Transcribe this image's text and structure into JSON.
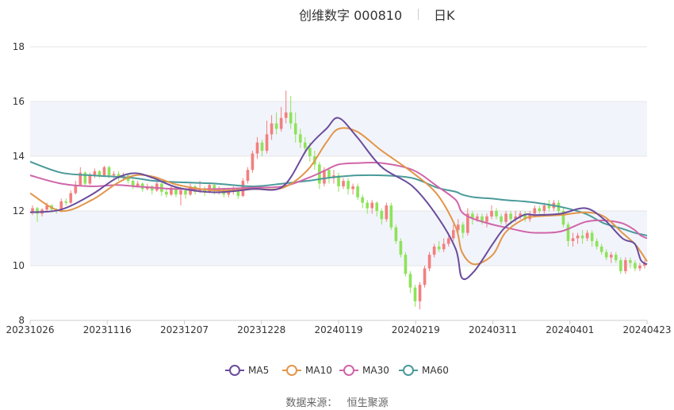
{
  "header": {
    "title": "创维数字 000810",
    "subtitle": "日K"
  },
  "footer": {
    "source_label": "数据来源：",
    "source_name": "恒生聚源"
  },
  "colors": {
    "up": "#f37f7f",
    "down": "#8de35a",
    "ma5": "#6a4c9c",
    "ma10": "#e2964a",
    "ma30": "#d065a9",
    "ma60": "#4a9a9a",
    "band": "#f2f4fb",
    "axis_text": "#333333"
  },
  "chart_data": {
    "type": "candlestick",
    "ylim": [
      8,
      18
    ],
    "yticks": [
      8,
      10,
      12,
      14,
      16,
      18
    ],
    "shaded_bands": [
      [
        10,
        12
      ],
      [
        14,
        16
      ]
    ],
    "xtick_labels": [
      "20231026",
      "20231116",
      "20231207",
      "20231228",
      "20240119",
      "20240219",
      "20240311",
      "20240401",
      "20240423"
    ],
    "legend": [
      {
        "name": "MA5",
        "color_key": "ma5"
      },
      {
        "name": "MA10",
        "color_key": "ma10"
      },
      {
        "name": "MA30",
        "color_key": "ma30"
      },
      {
        "name": "MA60",
        "color_key": "ma60"
      }
    ],
    "candles": [
      [
        11.95,
        12.1,
        12.2,
        11.85
      ],
      [
        12.1,
        11.9,
        12.15,
        11.6
      ],
      [
        11.9,
        12.05,
        12.1,
        11.8
      ],
      [
        12.05,
        12.2,
        12.3,
        12.0
      ],
      [
        12.2,
        12.05,
        12.25,
        11.95
      ],
      [
        12.05,
        12.0,
        12.1,
        11.9
      ],
      [
        12.0,
        12.35,
        12.45,
        11.95
      ],
      [
        12.35,
        12.3,
        12.45,
        12.2
      ],
      [
        12.3,
        12.65,
        12.75,
        12.25
      ],
      [
        12.65,
        12.95,
        13.1,
        12.6
      ],
      [
        12.95,
        13.4,
        13.6,
        12.9
      ],
      [
        13.4,
        13.0,
        13.45,
        12.9
      ],
      [
        13.0,
        13.3,
        13.4,
        12.95
      ],
      [
        13.3,
        13.45,
        13.55,
        13.2
      ],
      [
        13.45,
        13.3,
        13.5,
        13.2
      ],
      [
        13.3,
        13.6,
        13.65,
        13.25
      ],
      [
        13.6,
        13.3,
        13.65,
        13.2
      ],
      [
        13.3,
        13.35,
        13.45,
        13.2
      ],
      [
        13.35,
        13.2,
        13.45,
        13.1
      ],
      [
        13.2,
        13.3,
        13.4,
        13.1
      ],
      [
        13.3,
        13.1,
        13.35,
        13.0
      ],
      [
        13.1,
        12.9,
        13.15,
        12.8
      ],
      [
        12.9,
        13.0,
        13.1,
        12.85
      ],
      [
        13.0,
        12.8,
        13.05,
        12.7
      ],
      [
        12.8,
        12.9,
        13.0,
        12.75
      ],
      [
        12.9,
        12.75,
        12.95,
        12.6
      ],
      [
        12.75,
        13.0,
        13.1,
        12.7
      ],
      [
        13.0,
        12.7,
        13.05,
        12.55
      ],
      [
        12.7,
        12.6,
        12.8,
        12.5
      ],
      [
        12.6,
        12.85,
        12.95,
        12.55
      ],
      [
        12.85,
        12.6,
        12.9,
        12.5
      ],
      [
        12.6,
        12.75,
        12.8,
        12.2
      ],
      [
        12.75,
        12.6,
        12.85,
        12.45
      ],
      [
        12.6,
        12.9,
        13.0,
        12.55
      ],
      [
        12.9,
        12.7,
        12.95,
        12.6
      ],
      [
        12.7,
        12.8,
        13.1,
        12.65
      ],
      [
        12.8,
        12.7,
        12.9,
        12.55
      ],
      [
        12.7,
        12.95,
        13.05,
        12.65
      ],
      [
        12.95,
        12.75,
        13.0,
        12.6
      ],
      [
        12.75,
        12.8,
        12.9,
        12.6
      ],
      [
        12.8,
        12.6,
        12.85,
        12.5
      ],
      [
        12.6,
        12.7,
        12.8,
        12.5
      ],
      [
        12.7,
        12.8,
        12.9,
        12.6
      ],
      [
        12.8,
        12.55,
        12.85,
        12.45
      ],
      [
        12.55,
        13.1,
        13.2,
        12.5
      ],
      [
        13.1,
        13.5,
        13.6,
        13.0
      ],
      [
        13.5,
        14.1,
        14.2,
        13.4
      ],
      [
        14.1,
        14.5,
        14.7,
        13.9
      ],
      [
        14.5,
        14.2,
        14.6,
        14.0
      ],
      [
        14.2,
        14.8,
        15.3,
        14.1
      ],
      [
        14.8,
        15.2,
        15.5,
        14.6
      ],
      [
        15.2,
        15.0,
        15.6,
        14.8
      ],
      [
        15.0,
        15.4,
        15.8,
        14.9
      ],
      [
        15.4,
        15.6,
        16.4,
        15.2
      ],
      [
        15.6,
        15.2,
        16.2,
        15.0
      ],
      [
        15.2,
        14.8,
        15.6,
        14.5
      ],
      [
        14.8,
        14.5,
        15.0,
        14.3
      ],
      [
        14.5,
        14.3,
        14.7,
        14.1
      ],
      [
        14.3,
        14.0,
        14.5,
        13.8
      ],
      [
        14.0,
        13.7,
        14.2,
        13.5
      ],
      [
        13.7,
        13.0,
        13.8,
        12.8
      ],
      [
        13.0,
        13.5,
        13.6,
        12.9
      ],
      [
        13.5,
        13.2,
        13.6,
        13.0
      ],
      [
        13.2,
        13.3,
        13.5,
        13.0
      ],
      [
        13.3,
        12.9,
        13.4,
        12.7
      ],
      [
        12.9,
        13.1,
        13.2,
        12.8
      ],
      [
        13.1,
        12.8,
        13.2,
        12.6
      ],
      [
        12.8,
        12.9,
        13.0,
        12.6
      ],
      [
        12.9,
        12.5,
        13.0,
        12.4
      ],
      [
        12.5,
        12.3,
        12.6,
        12.1
      ],
      [
        12.3,
        12.1,
        12.4,
        11.9
      ],
      [
        12.1,
        12.3,
        12.4,
        11.9
      ],
      [
        12.3,
        12.0,
        12.35,
        11.8
      ],
      [
        12.0,
        11.7,
        12.1,
        11.5
      ],
      [
        11.7,
        12.2,
        12.3,
        11.6
      ],
      [
        12.2,
        11.4,
        12.3,
        11.3
      ],
      [
        11.4,
        10.9,
        11.5,
        10.8
      ],
      [
        10.9,
        10.4,
        11.0,
        10.3
      ],
      [
        10.4,
        9.7,
        10.5,
        9.6
      ],
      [
        9.7,
        9.2,
        9.8,
        9.0
      ],
      [
        9.2,
        8.7,
        9.3,
        8.5
      ],
      [
        8.7,
        9.3,
        9.4,
        8.4
      ],
      [
        9.3,
        9.9,
        10.0,
        9.2
      ],
      [
        9.9,
        10.4,
        10.5,
        9.8
      ],
      [
        10.4,
        10.7,
        10.8,
        10.3
      ],
      [
        10.7,
        10.6,
        10.9,
        10.5
      ],
      [
        10.6,
        10.8,
        11.0,
        10.5
      ],
      [
        10.8,
        11.0,
        11.2,
        10.7
      ],
      [
        11.0,
        11.3,
        11.5,
        10.9
      ],
      [
        11.3,
        11.5,
        11.7,
        11.2
      ],
      [
        11.5,
        11.2,
        11.6,
        11.0
      ],
      [
        11.2,
        11.9,
        12.1,
        11.1
      ],
      [
        11.9,
        11.7,
        12.0,
        11.5
      ],
      [
        11.7,
        11.8,
        11.9,
        11.6
      ],
      [
        11.8,
        11.6,
        11.9,
        11.5
      ],
      [
        11.6,
        11.8,
        11.9,
        11.4
      ],
      [
        11.8,
        12.0,
        12.2,
        11.7
      ],
      [
        12.0,
        11.8,
        12.1,
        11.7
      ],
      [
        11.8,
        11.6,
        11.9,
        11.5
      ],
      [
        11.6,
        11.9,
        12.0,
        11.5
      ],
      [
        11.9,
        11.7,
        12.0,
        11.5
      ],
      [
        11.7,
        11.8,
        12.0,
        11.6
      ],
      [
        11.8,
        11.9,
        12.0,
        11.7
      ],
      [
        11.9,
        11.7,
        12.0,
        11.6
      ],
      [
        11.7,
        11.9,
        12.0,
        11.6
      ],
      [
        11.9,
        12.1,
        12.2,
        11.8
      ],
      [
        12.1,
        12.0,
        12.2,
        11.9
      ],
      [
        12.0,
        12.2,
        12.3,
        11.9
      ],
      [
        12.2,
        12.1,
        12.4,
        12.0
      ],
      [
        12.1,
        12.3,
        12.4,
        12.0
      ],
      [
        12.3,
        12.0,
        12.4,
        11.9
      ],
      [
        12.0,
        11.5,
        12.1,
        11.4
      ],
      [
        11.5,
        10.9,
        11.6,
        10.7
      ],
      [
        10.9,
        11.0,
        11.2,
        10.7
      ],
      [
        11.0,
        11.1,
        11.2,
        10.8
      ],
      [
        11.1,
        11.0,
        11.3,
        10.8
      ],
      [
        11.0,
        11.2,
        11.3,
        10.9
      ],
      [
        11.2,
        10.9,
        11.3,
        10.7
      ],
      [
        10.9,
        10.7,
        11.0,
        10.6
      ],
      [
        10.7,
        10.5,
        10.8,
        10.4
      ],
      [
        10.5,
        10.3,
        10.6,
        10.2
      ],
      [
        10.3,
        10.4,
        10.5,
        10.1
      ],
      [
        10.4,
        10.2,
        10.5,
        10.1
      ],
      [
        10.2,
        9.8,
        10.3,
        9.7
      ],
      [
        9.8,
        10.2,
        10.3,
        9.7
      ],
      [
        10.2,
        10.1,
        10.3,
        9.9
      ],
      [
        10.1,
        9.9,
        10.2,
        9.8
      ],
      [
        9.9,
        10.0,
        10.1,
        9.8
      ],
      [
        10.0,
        10.1,
        10.2,
        9.9
      ]
    ],
    "ma": {
      "ma5": [
        [
          0,
          11.95
        ],
        [
          0.05,
          12.05
        ],
        [
          0.1,
          12.6
        ],
        [
          0.14,
          13.2
        ],
        [
          0.17,
          13.38
        ],
        [
          0.2,
          13.2
        ],
        [
          0.24,
          12.85
        ],
        [
          0.3,
          12.68
        ],
        [
          0.36,
          12.8
        ],
        [
          0.41,
          12.9
        ],
        [
          0.45,
          14.3
        ],
        [
          0.48,
          15.0
        ],
        [
          0.5,
          15.4
        ],
        [
          0.53,
          14.7
        ],
        [
          0.57,
          13.6
        ],
        [
          0.62,
          12.9
        ],
        [
          0.66,
          11.8
        ],
        [
          0.69,
          10.6
        ],
        [
          0.7,
          9.55
        ],
        [
          0.72,
          9.8
        ],
        [
          0.75,
          10.8
        ],
        [
          0.77,
          11.4
        ],
        [
          0.8,
          11.85
        ],
        [
          0.82,
          11.85
        ],
        [
          0.86,
          11.9
        ],
        [
          0.9,
          12.1
        ],
        [
          0.93,
          11.7
        ],
        [
          0.96,
          11.0
        ],
        [
          0.98,
          10.8
        ],
        [
          0.99,
          10.2
        ],
        [
          1.0,
          10.05
        ]
      ],
      "ma10": [
        [
          0,
          12.65
        ],
        [
          0.05,
          12.0
        ],
        [
          0.1,
          12.4
        ],
        [
          0.14,
          13.0
        ],
        [
          0.17,
          13.3
        ],
        [
          0.2,
          13.25
        ],
        [
          0.24,
          12.95
        ],
        [
          0.3,
          12.75
        ],
        [
          0.36,
          12.8
        ],
        [
          0.41,
          12.85
        ],
        [
          0.45,
          13.5
        ],
        [
          0.48,
          14.5
        ],
        [
          0.5,
          15.0
        ],
        [
          0.53,
          14.9
        ],
        [
          0.57,
          14.2
        ],
        [
          0.62,
          13.4
        ],
        [
          0.66,
          12.6
        ],
        [
          0.69,
          11.4
        ],
        [
          0.7,
          10.5
        ],
        [
          0.72,
          10.05
        ],
        [
          0.75,
          10.4
        ],
        [
          0.77,
          11.2
        ],
        [
          0.8,
          11.7
        ],
        [
          0.82,
          11.8
        ],
        [
          0.86,
          11.85
        ],
        [
          0.9,
          11.95
        ],
        [
          0.93,
          11.8
        ],
        [
          0.96,
          11.2
        ],
        [
          0.98,
          10.8
        ],
        [
          0.99,
          10.5
        ],
        [
          1.0,
          10.15
        ]
      ],
      "ma30": [
        [
          0,
          13.3
        ],
        [
          0.05,
          13.0
        ],
        [
          0.1,
          12.9
        ],
        [
          0.14,
          12.95
        ],
        [
          0.17,
          12.9
        ],
        [
          0.2,
          12.85
        ],
        [
          0.24,
          12.8
        ],
        [
          0.3,
          12.8
        ],
        [
          0.36,
          12.85
        ],
        [
          0.41,
          12.9
        ],
        [
          0.45,
          13.2
        ],
        [
          0.48,
          13.5
        ],
        [
          0.5,
          13.7
        ],
        [
          0.53,
          13.75
        ],
        [
          0.57,
          13.75
        ],
        [
          0.62,
          13.5
        ],
        [
          0.66,
          12.9
        ],
        [
          0.69,
          12.4
        ],
        [
          0.7,
          11.95
        ],
        [
          0.72,
          11.7
        ],
        [
          0.75,
          11.5
        ],
        [
          0.77,
          11.4
        ],
        [
          0.8,
          11.25
        ],
        [
          0.82,
          11.2
        ],
        [
          0.86,
          11.25
        ],
        [
          0.9,
          11.6
        ],
        [
          0.93,
          11.65
        ],
        [
          0.96,
          11.55
        ],
        [
          0.98,
          11.3
        ],
        [
          0.99,
          11.1
        ],
        [
          1.0,
          11.0
        ]
      ],
      "ma60": [
        [
          0,
          13.8
        ],
        [
          0.05,
          13.4
        ],
        [
          0.1,
          13.3
        ],
        [
          0.14,
          13.25
        ],
        [
          0.17,
          13.2
        ],
        [
          0.2,
          13.1
        ],
        [
          0.24,
          13.05
        ],
        [
          0.3,
          13.0
        ],
        [
          0.36,
          12.9
        ],
        [
          0.41,
          13.0
        ],
        [
          0.45,
          13.1
        ],
        [
          0.48,
          13.2
        ],
        [
          0.5,
          13.25
        ],
        [
          0.53,
          13.3
        ],
        [
          0.57,
          13.3
        ],
        [
          0.62,
          13.2
        ],
        [
          0.66,
          12.85
        ],
        [
          0.69,
          12.7
        ],
        [
          0.7,
          12.6
        ],
        [
          0.72,
          12.5
        ],
        [
          0.75,
          12.45
        ],
        [
          0.77,
          12.4
        ],
        [
          0.8,
          12.35
        ],
        [
          0.82,
          12.3
        ],
        [
          0.86,
          12.15
        ],
        [
          0.9,
          11.9
        ],
        [
          0.93,
          11.55
        ],
        [
          0.96,
          11.35
        ],
        [
          0.98,
          11.2
        ],
        [
          0.99,
          11.15
        ],
        [
          1.0,
          11.1
        ]
      ]
    }
  }
}
